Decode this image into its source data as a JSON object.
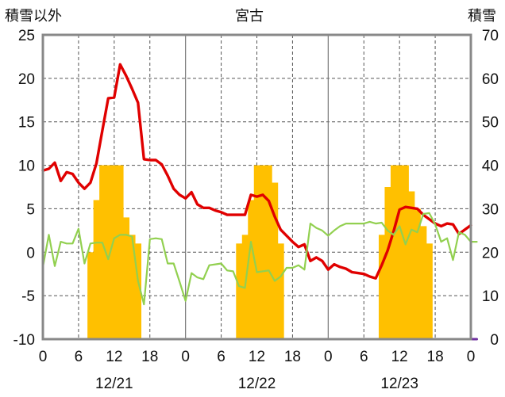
{
  "chart_data": {
    "type": "bar+line",
    "title": "宮古",
    "left_axis_label": "積雪以外",
    "right_axis_label": "積雪",
    "left_axis": {
      "min": -10,
      "max": 25,
      "step": 5,
      "ticks": [
        "25",
        "20",
        "15",
        "10",
        "5",
        "0",
        "-5",
        "-10"
      ]
    },
    "right_axis": {
      "min": 0,
      "max": 70,
      "step": 10,
      "ticks": [
        "70",
        "60",
        "50",
        "40",
        "30",
        "20",
        "10",
        "0"
      ]
    },
    "x_axis": {
      "hours_total": 72,
      "tick_labels": [
        "0",
        "6",
        "12",
        "18",
        "0",
        "6",
        "12",
        "18",
        "0",
        "6",
        "12",
        "18",
        "0"
      ],
      "date_labels": [
        "12/21",
        "12/22",
        "12/23"
      ]
    },
    "grid": true,
    "series": [
      {
        "axis": "right",
        "style": "bar",
        "color": "#ffc000",
        "values": [
          [
            8,
            20
          ],
          [
            9,
            32
          ],
          [
            10,
            40
          ],
          [
            11,
            40
          ],
          [
            12,
            40
          ],
          [
            13,
            40
          ],
          [
            14,
            28
          ],
          [
            15,
            24
          ],
          [
            16,
            22
          ],
          [
            33,
            22
          ],
          [
            34,
            24
          ],
          [
            35,
            32
          ],
          [
            36,
            40
          ],
          [
            37,
            40
          ],
          [
            38,
            40
          ],
          [
            39,
            36
          ],
          [
            40,
            22
          ],
          [
            57,
            24
          ],
          [
            58,
            35
          ],
          [
            59,
            40
          ],
          [
            60,
            40
          ],
          [
            61,
            40
          ],
          [
            62,
            34
          ],
          [
            63,
            30
          ],
          [
            64,
            26
          ],
          [
            65,
            22
          ]
        ]
      },
      {
        "axis": "left",
        "style": "line",
        "color": "#e00000",
        "values": [
          [
            0,
            9.4
          ],
          [
            1,
            9.6
          ],
          [
            2,
            10.3
          ],
          [
            3,
            8.2
          ],
          [
            4,
            9.2
          ],
          [
            5,
            9.0
          ],
          [
            6,
            8.0
          ],
          [
            7,
            7.3
          ],
          [
            8,
            8.0
          ],
          [
            9,
            10.2
          ],
          [
            10,
            14.0
          ],
          [
            11,
            17.7
          ],
          [
            12,
            17.8
          ],
          [
            13,
            21.6
          ],
          [
            14,
            20.3
          ],
          [
            15,
            18.8
          ],
          [
            16,
            17.2
          ],
          [
            17,
            10.7
          ],
          [
            18,
            10.6
          ],
          [
            19,
            10.6
          ],
          [
            20,
            10.1
          ],
          [
            21,
            8.8
          ],
          [
            22,
            7.3
          ],
          [
            23,
            6.6
          ],
          [
            24,
            6.2
          ],
          [
            25,
            6.9
          ],
          [
            26,
            5.5
          ],
          [
            27,
            5.1
          ],
          [
            28,
            5.1
          ],
          [
            29,
            4.8
          ],
          [
            30,
            4.6
          ],
          [
            31,
            4.3
          ],
          [
            32,
            4.3
          ],
          [
            33,
            4.3
          ],
          [
            34,
            4.3
          ],
          [
            35,
            6.6
          ],
          [
            36,
            6.4
          ],
          [
            37,
            6.6
          ],
          [
            38,
            5.9
          ],
          [
            39,
            4.1
          ],
          [
            40,
            2.6
          ],
          [
            41,
            1.9
          ],
          [
            42,
            1.2
          ],
          [
            43,
            0.6
          ],
          [
            44,
            0.9
          ],
          [
            45,
            -1.0
          ],
          [
            46,
            -0.6
          ],
          [
            47,
            -1.0
          ],
          [
            48,
            -2.0
          ],
          [
            49,
            -1.4
          ],
          [
            50,
            -1.7
          ],
          [
            51,
            -1.9
          ],
          [
            52,
            -2.3
          ],
          [
            53,
            -2.4
          ],
          [
            54,
            -2.5
          ],
          [
            55,
            -2.8
          ],
          [
            56,
            -3.0
          ],
          [
            57,
            -1.5
          ],
          [
            58,
            0.2
          ],
          [
            59,
            2.4
          ],
          [
            60,
            4.9
          ],
          [
            61,
            5.2
          ],
          [
            62,
            5.1
          ],
          [
            63,
            5.0
          ],
          [
            64,
            4.3
          ],
          [
            65,
            3.8
          ],
          [
            66,
            3.3
          ],
          [
            67,
            3.0
          ],
          [
            68,
            3.3
          ],
          [
            69,
            3.2
          ],
          [
            70,
            2.1
          ],
          [
            71,
            2.6
          ],
          [
            72,
            3.1
          ]
        ]
      },
      {
        "axis": "left",
        "style": "line",
        "color": "#92d050",
        "values": [
          [
            0,
            -1.7
          ],
          [
            1,
            2.0
          ],
          [
            2,
            -1.6
          ],
          [
            3,
            1.2
          ],
          [
            4,
            1.0
          ],
          [
            5,
            1.0
          ],
          [
            6,
            2.7
          ],
          [
            7,
            -1.3
          ],
          [
            8,
            1.0
          ],
          [
            9,
            1.1
          ],
          [
            10,
            1.1
          ],
          [
            11,
            -0.8
          ],
          [
            12,
            1.6
          ],
          [
            13,
            2.0
          ],
          [
            14,
            2.0
          ],
          [
            15,
            1.8
          ],
          [
            16,
            -3.3
          ],
          [
            17,
            -6.0
          ],
          [
            18,
            1.5
          ],
          [
            19,
            1.6
          ],
          [
            20,
            1.5
          ],
          [
            21,
            -1.3
          ],
          [
            22,
            -1.3
          ],
          [
            23,
            -3.4
          ],
          [
            24,
            -5.6
          ],
          [
            25,
            -2.4
          ],
          [
            26,
            -2.9
          ],
          [
            27,
            -3.1
          ],
          [
            28,
            -1.5
          ],
          [
            29,
            -1.4
          ],
          [
            30,
            -1.3
          ],
          [
            31,
            -2.1
          ],
          [
            32,
            -2.2
          ],
          [
            33,
            -3.9
          ],
          [
            34,
            -4.1
          ],
          [
            35,
            1.2
          ],
          [
            36,
            -2.3
          ],
          [
            37,
            -2.2
          ],
          [
            38,
            -2.1
          ],
          [
            39,
            -3.3
          ],
          [
            40,
            -2.8
          ],
          [
            41,
            -1.8
          ],
          [
            42,
            -1.8
          ],
          [
            43,
            -1.5
          ],
          [
            44,
            -2.0
          ],
          [
            45,
            3.3
          ],
          [
            46,
            2.8
          ],
          [
            47,
            2.5
          ],
          [
            48,
            1.9
          ],
          [
            49,
            2.5
          ],
          [
            50,
            3.0
          ],
          [
            51,
            3.3
          ],
          [
            52,
            3.3
          ],
          [
            53,
            3.3
          ],
          [
            54,
            3.3
          ],
          [
            55,
            3.5
          ],
          [
            56,
            3.3
          ],
          [
            57,
            3.4
          ],
          [
            58,
            2.5
          ],
          [
            59,
            2.0
          ],
          [
            60,
            3.0
          ],
          [
            61,
            0.9
          ],
          [
            62,
            2.6
          ],
          [
            63,
            2.3
          ],
          [
            64,
            4.4
          ],
          [
            65,
            4.5
          ],
          [
            66,
            3.2
          ],
          [
            67,
            1.2
          ],
          [
            68,
            1.6
          ],
          [
            69,
            -0.9
          ],
          [
            70,
            2.3
          ],
          [
            71,
            2.0
          ],
          [
            72,
            1.2
          ],
          [
            73,
            1.2
          ]
        ]
      },
      {
        "axis": "left",
        "style": "line",
        "color": "#7030a0",
        "values": [
          [
            0,
            -10
          ],
          [
            73,
            -10
          ]
        ]
      }
    ]
  }
}
